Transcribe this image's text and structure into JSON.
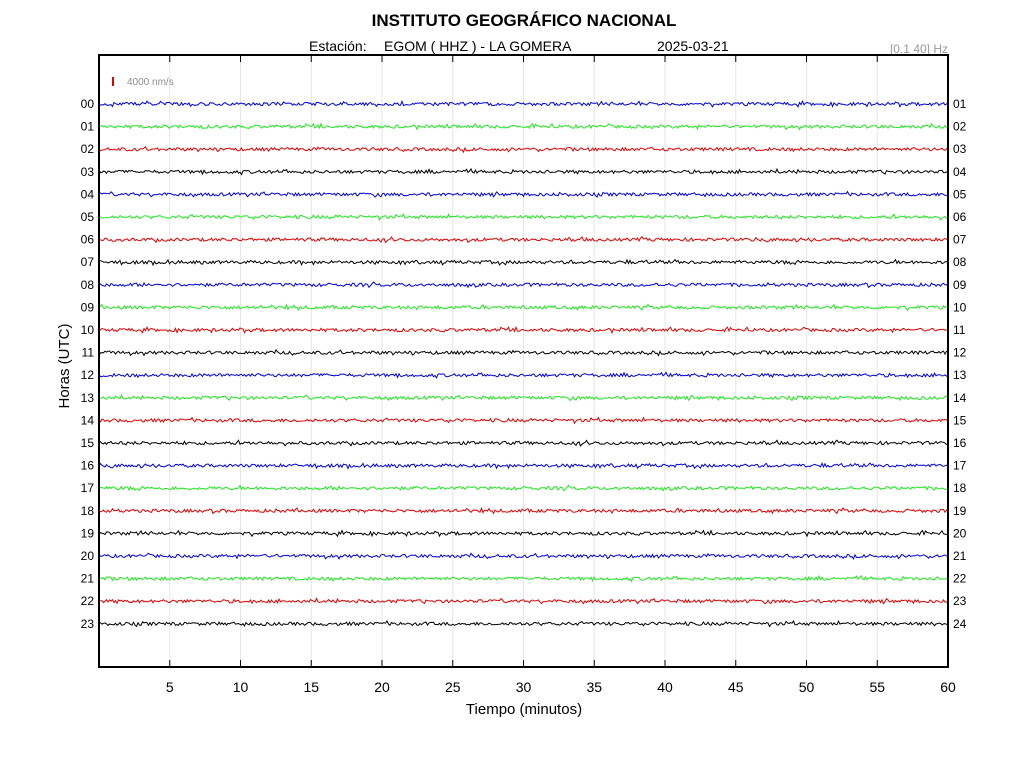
{
  "header": {
    "title": "INSTITUTO GEOGRÁFICO NACIONAL",
    "station_label": "Estación:",
    "station": "EGOM ( HHZ ) - LA GOMERA",
    "date": "2025-03-21",
    "filter": "[0.1 40] Hz"
  },
  "chart_data": {
    "type": "line",
    "xlabel": "Tiempo (minutos)",
    "ylabel": "Horas (UTC)",
    "xlim": [
      0,
      60
    ],
    "x_ticks": [
      "5",
      "10",
      "15",
      "20",
      "25",
      "30",
      "35",
      "40",
      "45",
      "50",
      "55",
      "60"
    ],
    "grid": "vertical",
    "scale_bar_label": "4000 nm/s",
    "scale_bar_color": "#e00000",
    "hours_left": [
      "00",
      "01",
      "02",
      "03",
      "04",
      "05",
      "06",
      "07",
      "08",
      "09",
      "10",
      "11",
      "12",
      "13",
      "14",
      "15",
      "16",
      "17",
      "18",
      "19",
      "20",
      "21",
      "22",
      "23"
    ],
    "hours_right": [
      "01",
      "02",
      "03",
      "04",
      "05",
      "06",
      "07",
      "08",
      "09",
      "10",
      "11",
      "12",
      "13",
      "14",
      "15",
      "16",
      "17",
      "18",
      "19",
      "20",
      "21",
      "22",
      "23",
      "24"
    ],
    "trace_colors": [
      "#0000e0",
      "#1ee61e",
      "#e00000",
      "#000000"
    ]
  }
}
